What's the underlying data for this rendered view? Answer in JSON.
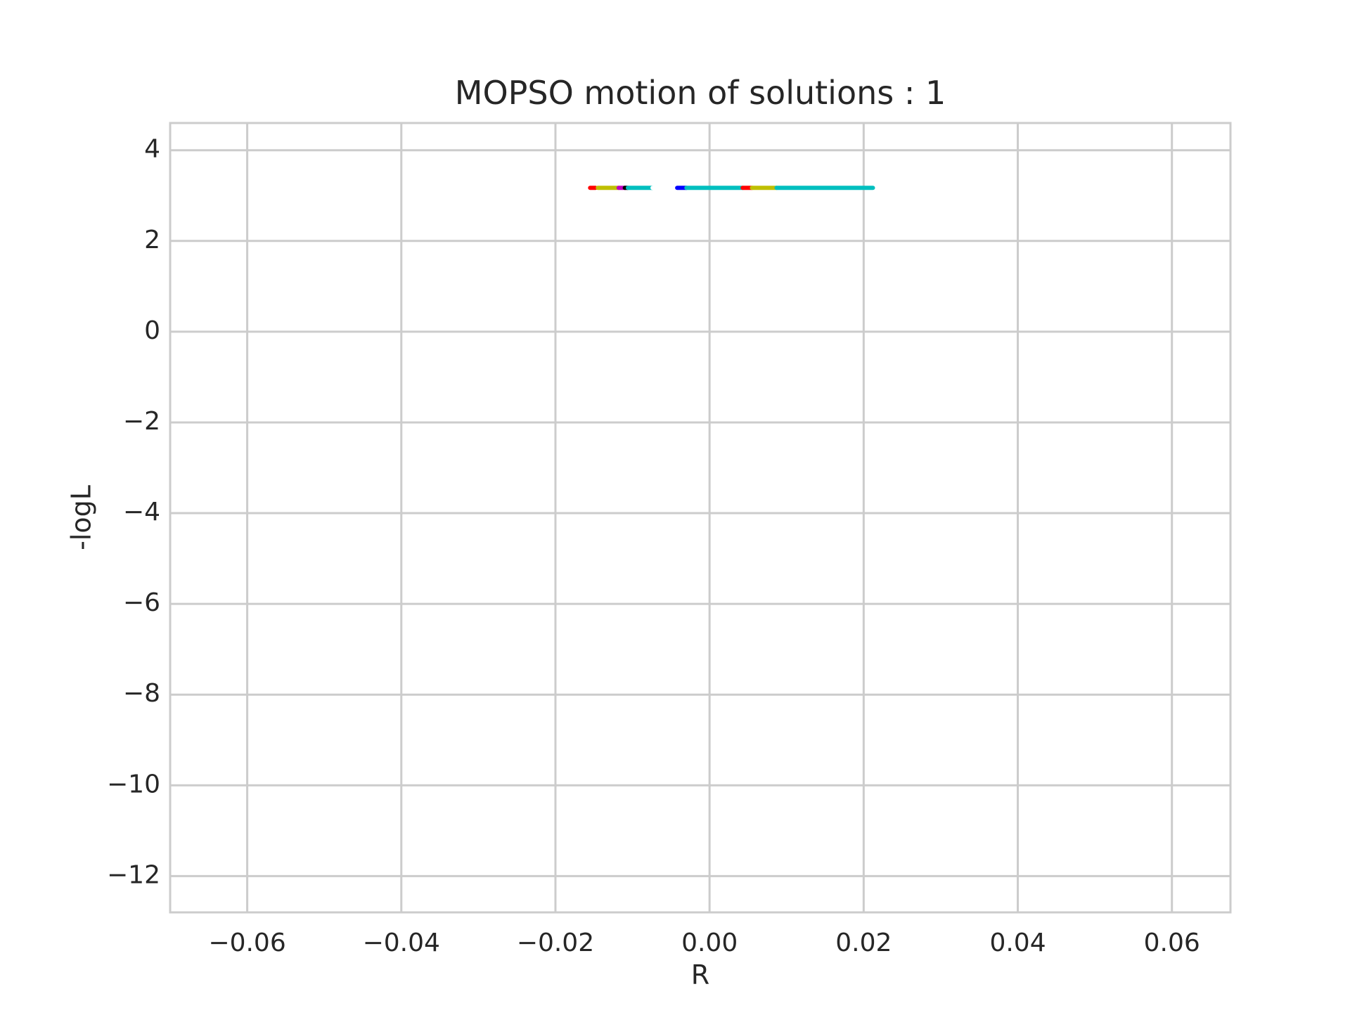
{
  "chart_data": {
    "type": "line",
    "title": "MOPSO motion of solutions : 1",
    "xlabel": "R",
    "ylabel": "-logL",
    "xlim": [
      -0.07,
      0.0676
    ],
    "ylim": [
      -12.8,
      4.6
    ],
    "xticks": [
      -0.06,
      -0.04,
      -0.02,
      0.0,
      0.02,
      0.04,
      0.06
    ],
    "xtick_labels": [
      "−0.06",
      "−0.04",
      "−0.02",
      "0.00",
      "0.02",
      "0.04",
      "0.06"
    ],
    "yticks": [
      4,
      2,
      0,
      -2,
      -4,
      -6,
      -8,
      -10,
      -12
    ],
    "ytick_labels": [
      "4",
      "2",
      "0",
      "−2",
      "−4",
      "−6",
      "−8",
      "−10",
      "−12"
    ],
    "grid": true,
    "series": [
      {
        "color": "#ff0000",
        "x": [
          -0.0155,
          -0.0148
        ],
        "y": [
          3.17,
          3.17
        ]
      },
      {
        "color": "#bfbf00",
        "x": [
          -0.0145,
          -0.0118
        ],
        "y": [
          3.17,
          3.17
        ]
      },
      {
        "color": "#bf00bf",
        "x": [
          -0.0118,
          -0.011
        ],
        "y": [
          3.17,
          3.17
        ]
      },
      {
        "color": "#000000",
        "x": [
          -0.011,
          -0.0106
        ],
        "y": [
          3.17,
          3.17
        ]
      },
      {
        "color": "#00bfbf",
        "x": [
          -0.0106,
          -0.0074
        ],
        "y": [
          3.17,
          3.17
        ]
      },
      {
        "color": "#ffffff",
        "x": [
          -0.0074,
          -0.0045
        ],
        "y": [
          3.17,
          3.17
        ]
      },
      {
        "color": "#0000ff",
        "x": [
          -0.0042,
          -0.003
        ],
        "y": [
          3.17,
          3.17
        ]
      },
      {
        "color": "#00bfbf",
        "x": [
          -0.003,
          0.0043
        ],
        "y": [
          3.17,
          3.17
        ]
      },
      {
        "color": "#ff0000",
        "x": [
          0.0043,
          0.0055
        ],
        "y": [
          3.17,
          3.17
        ]
      },
      {
        "color": "#bfbf00",
        "x": [
          0.0055,
          0.0087
        ],
        "y": [
          3.17,
          3.17
        ]
      },
      {
        "color": "#00bfbf",
        "x": [
          0.0087,
          0.0212
        ],
        "y": [
          3.17,
          3.17
        ]
      }
    ]
  }
}
